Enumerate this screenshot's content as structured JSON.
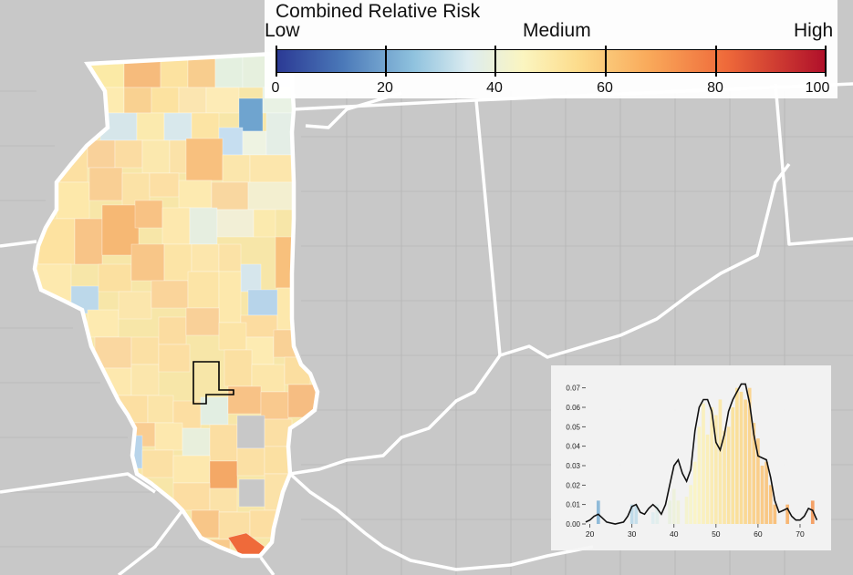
{
  "legend": {
    "title": "Combined Relative Risk",
    "low_label": "Low",
    "medium_label": "Medium",
    "high_label": "High",
    "ticks": [
      "0",
      "20",
      "40",
      "60",
      "80",
      "100"
    ]
  },
  "colors": {
    "background_land": "#c8c8c8",
    "boundary": "#ffffff",
    "scale": [
      "#2b3994",
      "#4a78b8",
      "#8fc2de",
      "#dcecf0",
      "#fbf5c0",
      "#fcdc8c",
      "#f9a95a",
      "#ef6a3a",
      "#b0102a"
    ]
  },
  "map": {
    "highlighted_region": "outlined county group in central Illinois"
  },
  "chart_data": {
    "type": "bar",
    "x_ticks": [
      20,
      30,
      40,
      50,
      60,
      70
    ],
    "y_ticks": [
      "0.00",
      "0.01",
      "0.02",
      "0.03",
      "0.04",
      "0.05",
      "0.06",
      "0.07"
    ],
    "xlim": [
      19,
      75
    ],
    "ylim": [
      0,
      0.075
    ],
    "bars": [
      {
        "x": 22,
        "y": 0.012
      },
      {
        "x": 30,
        "y": 0.01
      },
      {
        "x": 31,
        "y": 0.01
      },
      {
        "x": 35,
        "y": 0.006
      },
      {
        "x": 36,
        "y": 0.01
      },
      {
        "x": 39,
        "y": 0.012
      },
      {
        "x": 40,
        "y": 0.018
      },
      {
        "x": 41,
        "y": 0.012
      },
      {
        "x": 43,
        "y": 0.014
      },
      {
        "x": 44,
        "y": 0.02
      },
      {
        "x": 45,
        "y": 0.032
      },
      {
        "x": 46,
        "y": 0.05
      },
      {
        "x": 47,
        "y": 0.062
      },
      {
        "x": 48,
        "y": 0.046
      },
      {
        "x": 49,
        "y": 0.06
      },
      {
        "x": 50,
        "y": 0.056
      },
      {
        "x": 51,
        "y": 0.064
      },
      {
        "x": 52,
        "y": 0.048
      },
      {
        "x": 53,
        "y": 0.05
      },
      {
        "x": 54,
        "y": 0.06
      },
      {
        "x": 55,
        "y": 0.07
      },
      {
        "x": 56,
        "y": 0.068
      },
      {
        "x": 57,
        "y": 0.064
      },
      {
        "x": 58,
        "y": 0.07
      },
      {
        "x": 59,
        "y": 0.052
      },
      {
        "x": 60,
        "y": 0.044
      },
      {
        "x": 61,
        "y": 0.03
      },
      {
        "x": 62,
        "y": 0.032
      },
      {
        "x": 63,
        "y": 0.02
      },
      {
        "x": 64,
        "y": 0.01
      },
      {
        "x": 67,
        "y": 0.01
      },
      {
        "x": 73,
        "y": 0.012
      }
    ],
    "density": [
      [
        19,
        0.001
      ],
      [
        20,
        0.002
      ],
      [
        21,
        0.004
      ],
      [
        22,
        0.005
      ],
      [
        23,
        0.003
      ],
      [
        24,
        0.001
      ],
      [
        26,
        0.0
      ],
      [
        28,
        0.001
      ],
      [
        29,
        0.004
      ],
      [
        30,
        0.009
      ],
      [
        31,
        0.01
      ],
      [
        32,
        0.006
      ],
      [
        33,
        0.005
      ],
      [
        34,
        0.008
      ],
      [
        35,
        0.01
      ],
      [
        36,
        0.008
      ],
      [
        37,
        0.005
      ],
      [
        38,
        0.01
      ],
      [
        39,
        0.02
      ],
      [
        40,
        0.03
      ],
      [
        41,
        0.033
      ],
      [
        42,
        0.026
      ],
      [
        43,
        0.022
      ],
      [
        44,
        0.028
      ],
      [
        45,
        0.048
      ],
      [
        46,
        0.06
      ],
      [
        47,
        0.064
      ],
      [
        48,
        0.064
      ],
      [
        49,
        0.058
      ],
      [
        50,
        0.042
      ],
      [
        51,
        0.038
      ],
      [
        52,
        0.046
      ],
      [
        53,
        0.058
      ],
      [
        54,
        0.064
      ],
      [
        55,
        0.068
      ],
      [
        56,
        0.072
      ],
      [
        57,
        0.072
      ],
      [
        58,
        0.062
      ],
      [
        59,
        0.046
      ],
      [
        60,
        0.035
      ],
      [
        61,
        0.034
      ],
      [
        62,
        0.033
      ],
      [
        63,
        0.024
      ],
      [
        64,
        0.012
      ],
      [
        65,
        0.006
      ],
      [
        66,
        0.007
      ],
      [
        67,
        0.008
      ],
      [
        68,
        0.004
      ],
      [
        69,
        0.002
      ],
      [
        70,
        0.002
      ],
      [
        71,
        0.004
      ],
      [
        72,
        0.008
      ],
      [
        73,
        0.007
      ],
      [
        74,
        0.002
      ]
    ]
  }
}
